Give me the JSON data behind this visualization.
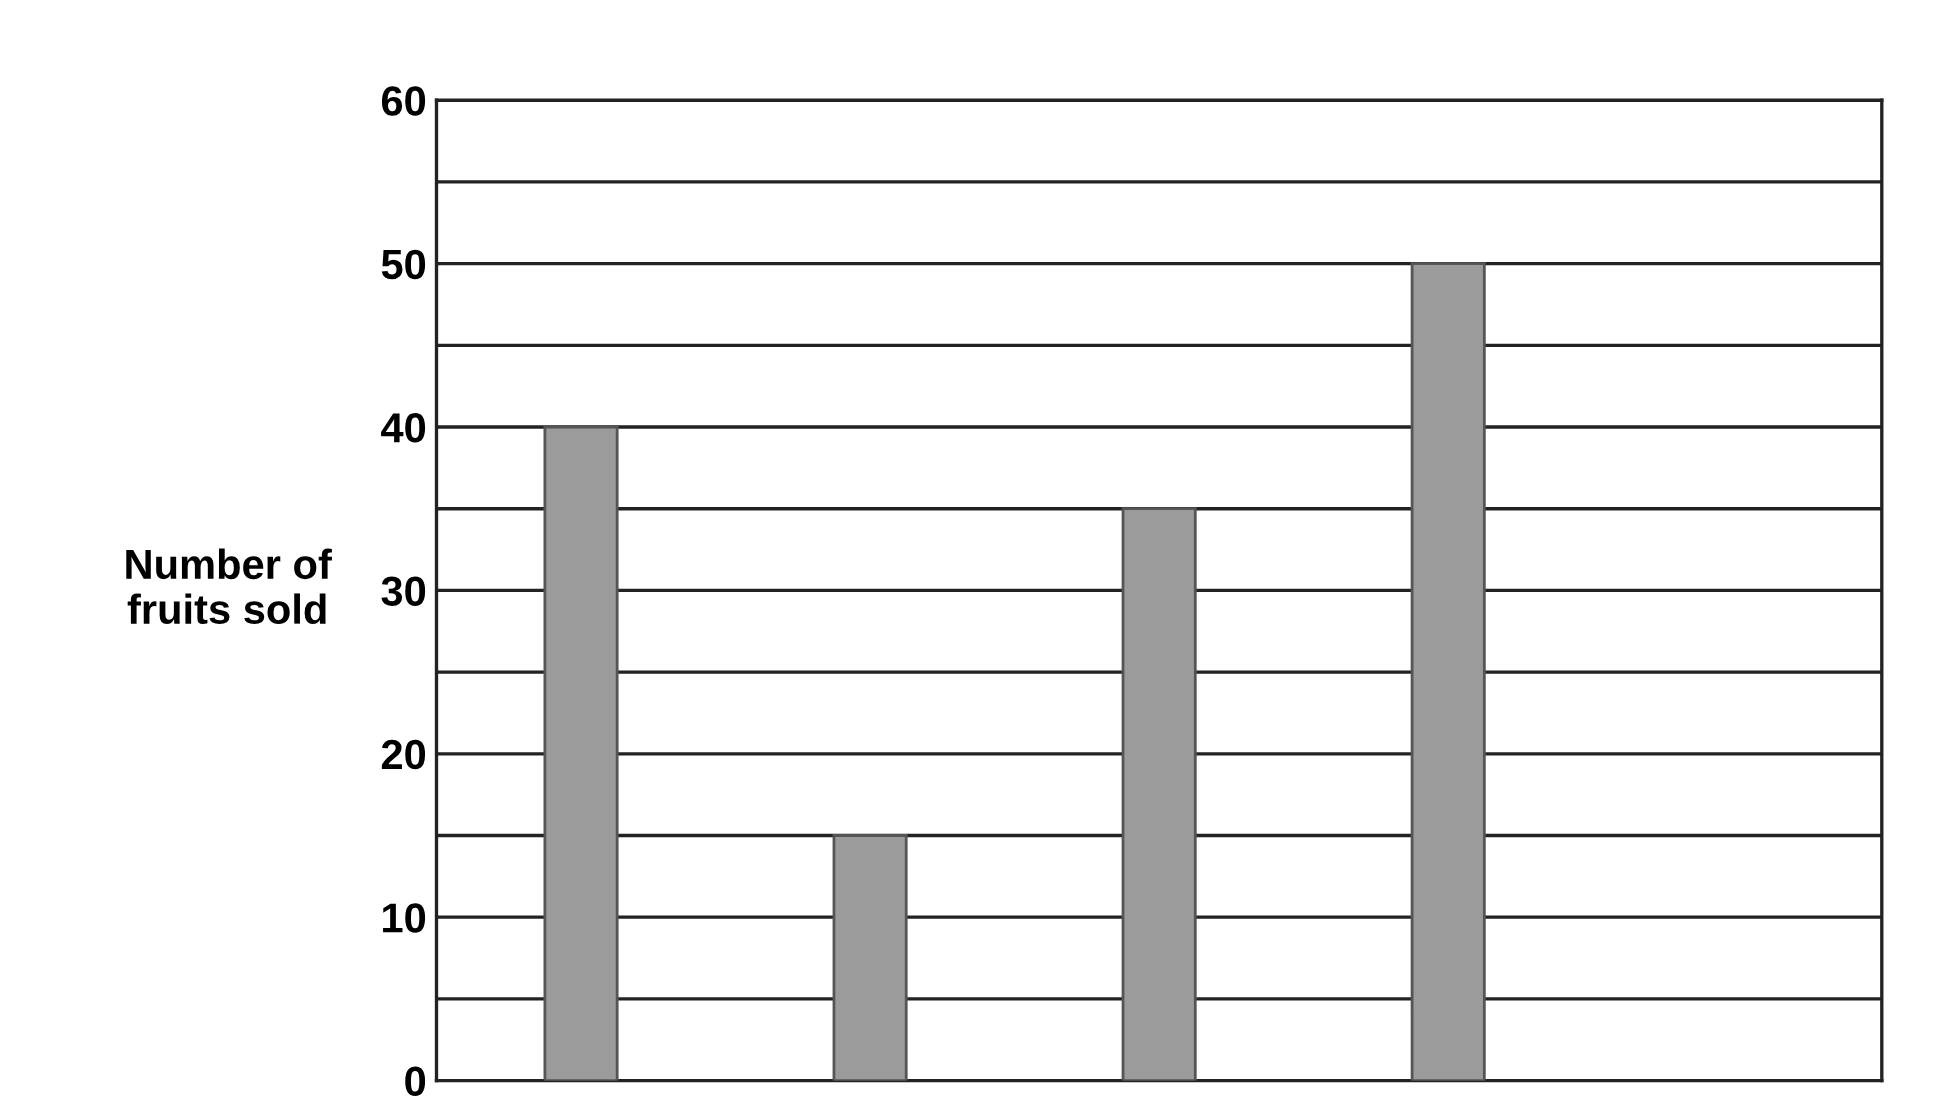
{
  "chart_data": {
    "type": "bar",
    "ylabel": "Number of\nfruits sold",
    "categories": [
      null,
      null,
      null,
      null,
      null
    ],
    "values": [
      40,
      15,
      35,
      50,
      null
    ],
    "color": "#9b9b9b",
    "ylim": [
      0,
      60
    ],
    "yticks": [
      0,
      {
        "value": 5,
        "label": null
      },
      10,
      {
        "value": 15,
        "label": null
      },
      20,
      {
        "value": 25,
        "label": null
      },
      30,
      {
        "value": 35,
        "label": null
      },
      40,
      {
        "value": 45,
        "label": null
      },
      50,
      {
        "value": 55,
        "label": null
      },
      60
    ],
    "grid": "y"
  }
}
